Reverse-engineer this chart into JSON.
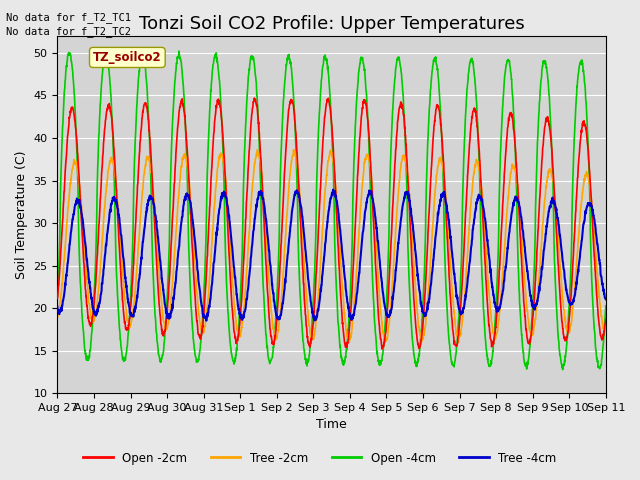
{
  "title": "Tonzi Soil CO2 Profile: Upper Temperatures",
  "xlabel": "Time",
  "ylabel": "Soil Temperature (C)",
  "ylim": [
    10,
    52
  ],
  "yticks": [
    10,
    15,
    20,
    25,
    30,
    35,
    40,
    45,
    50
  ],
  "no_data_text_1": "No data for f_T2_TC1",
  "no_data_text_2": "No data for f_T2_TC2",
  "legend_box_label": "TZ_soilco2",
  "legend_entries": [
    "Open -2cm",
    "Tree -2cm",
    "Open -4cm",
    "Tree -4cm"
  ],
  "line_colors": [
    "#ff0000",
    "#ffa500",
    "#00cc00",
    "#0000cc"
  ],
  "x_tick_labels": [
    "Aug 27",
    "Aug 28",
    "Aug 29",
    "Aug 30",
    "Aug 31",
    "Sep 1",
    "Sep 2",
    "Sep 3",
    "Sep 4",
    "Sep 5",
    "Sep 6",
    "Sep 7",
    "Sep 8",
    "Sep 9",
    "Sep 10",
    "Sep 11"
  ],
  "background_color": "#e8e8e8",
  "plot_bg_color": "#d4d4d4",
  "title_fontsize": 13,
  "axis_label_fontsize": 9,
  "tick_label_fontsize": 8,
  "total_days": 15,
  "period_hours": 24
}
